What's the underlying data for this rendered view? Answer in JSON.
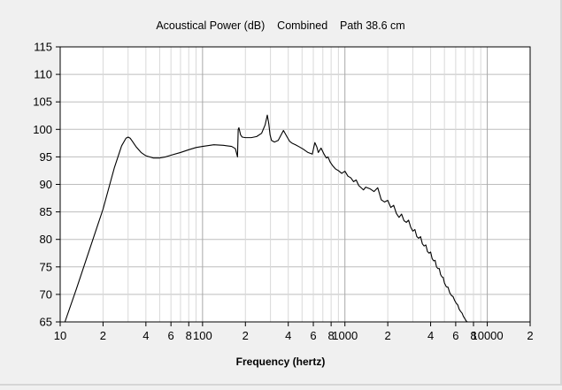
{
  "chart_data": {
    "type": "line",
    "title": "Acoustical Power (dB)    Combined    Path 38.6 cm",
    "xlabel": "Frequency (hertz)",
    "ylabel": "",
    "x_scale": "log",
    "xlim": [
      10,
      20000
    ],
    "ylim": [
      65,
      115
    ],
    "grid": true,
    "y_ticks": [
      65,
      70,
      75,
      80,
      85,
      90,
      95,
      100,
      105,
      110,
      115
    ],
    "x_tick_labels": [
      {
        "value": 10,
        "label": "10"
      },
      {
        "value": 20,
        "label": "2"
      },
      {
        "value": 40,
        "label": "4"
      },
      {
        "value": 60,
        "label": "6"
      },
      {
        "value": 80,
        "label": "8"
      },
      {
        "value": 100,
        "label": "100"
      },
      {
        "value": 200,
        "label": "2"
      },
      {
        "value": 400,
        "label": "4"
      },
      {
        "value": 600,
        "label": "6"
      },
      {
        "value": 800,
        "label": "8"
      },
      {
        "value": 1000,
        "label": "1000"
      },
      {
        "value": 2000,
        "label": "2"
      },
      {
        "value": 4000,
        "label": "4"
      },
      {
        "value": 6000,
        "label": "6"
      },
      {
        "value": 8000,
        "label": "8"
      },
      {
        "value": 10000,
        "label": "10000"
      },
      {
        "value": 20000,
        "label": "2"
      }
    ],
    "series": [
      {
        "color": "#000000",
        "x": [
          10.8,
          13,
          16,
          20,
          24,
          27,
          29,
          30,
          31,
          32,
          34,
          37,
          40,
          45,
          50,
          55,
          60,
          70,
          80,
          90,
          100,
          120,
          140,
          160,
          170,
          176,
          178,
          180,
          185,
          190,
          200,
          220,
          240,
          260,
          275,
          285,
          292,
          298,
          305,
          320,
          340,
          370,
          395,
          410,
          425,
          450,
          480,
          510,
          550,
          590,
          615,
          635,
          650,
          680,
          710,
          740,
          760,
          790,
          820,
          860,
          900,
          950,
          1000,
          1050,
          1100,
          1150,
          1200,
          1250,
          1300,
          1350,
          1400,
          1500,
          1600,
          1700,
          1800,
          1900,
          2000,
          2100,
          2200,
          2300,
          2400,
          2500,
          2600,
          2700,
          2800,
          2900,
          3000,
          3100,
          3200,
          3300,
          3400,
          3500,
          3600,
          3700,
          3800,
          3900,
          4000,
          4100,
          4200,
          4300,
          4400,
          4500,
          4600,
          4700,
          4800,
          4900,
          5000,
          5150,
          5300,
          5450,
          5600,
          5750,
          5900,
          6050,
          6200,
          6350,
          6500,
          6650,
          6800,
          6950,
          7100,
          7250
        ],
        "y": [
          65,
          71,
          78,
          85.5,
          93,
          97,
          98.4,
          98.6,
          98.4,
          97.9,
          96.9,
          95.8,
          95.2,
          94.8,
          94.8,
          95,
          95.3,
          95.8,
          96.3,
          96.7,
          96.9,
          97.2,
          97.1,
          96.9,
          96.5,
          95,
          100,
          100.3,
          99,
          98.6,
          98.5,
          98.5,
          98.7,
          99.3,
          100.8,
          102.6,
          101,
          99,
          98,
          97.7,
          98,
          99.8,
          98.5,
          97.8,
          97.5,
          97.2,
          96.8,
          96.4,
          95.8,
          95.5,
          97.6,
          96.8,
          95.8,
          96.6,
          95.6,
          94.8,
          95,
          94,
          93.4,
          92.8,
          92.5,
          92,
          92.4,
          91.5,
          91.2,
          90.5,
          90.8,
          89.8,
          89.4,
          89,
          89.5,
          89.2,
          88.7,
          89.4,
          87.2,
          86.8,
          87.1,
          85.8,
          86.2,
          84.7,
          84,
          84.6,
          83.4,
          83.1,
          83.5,
          82.2,
          81.5,
          81.8,
          80.5,
          80.2,
          80.5,
          79.2,
          78.8,
          79,
          77.8,
          77.5,
          77.7,
          76.5,
          76.1,
          76.2,
          75,
          74.7,
          74.7,
          73.6,
          73.2,
          73.1,
          72.1,
          71.4,
          71.3,
          70.3,
          69.8,
          69.6,
          68.9,
          68.4,
          68.1,
          67.3,
          66.9,
          66.6,
          66,
          65.6,
          65.2,
          65
        ]
      }
    ]
  }
}
